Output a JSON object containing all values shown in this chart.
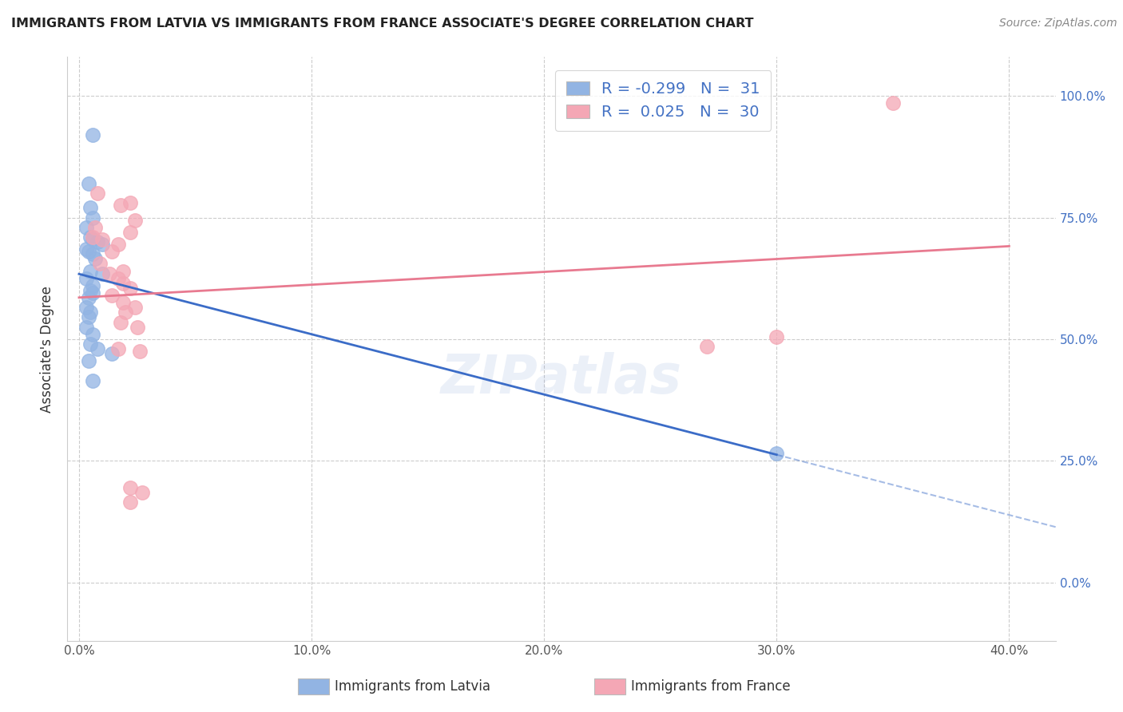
{
  "title": "IMMIGRANTS FROM LATVIA VS IMMIGRANTS FROM FRANCE ASSOCIATE'S DEGREE CORRELATION CHART",
  "source": "Source: ZipAtlas.com",
  "ylabel": "Associate's Degree",
  "legend_R1": "-0.299",
  "legend_N1": "31",
  "legend_R2": "0.025",
  "legend_N2": "30",
  "blue_color": "#92B4E3",
  "pink_color": "#F4A7B5",
  "blue_line_color": "#3B6CC7",
  "pink_line_color": "#E87A90",
  "xlim": [
    -0.5,
    42.0
  ],
  "ylim": [
    -0.12,
    1.08
  ],
  "x_ticks": [
    0,
    10,
    20,
    30,
    40
  ],
  "x_ticklabels": [
    "0.0%",
    "10.0%",
    "20.0%",
    "30.0%",
    "40.0%"
  ],
  "y_ticks": [
    0.0,
    0.25,
    0.5,
    0.75,
    1.0
  ],
  "y_ticklabels_right": [
    "0.0%",
    "25.0%",
    "50.0%",
    "75.0%",
    "100.0%"
  ],
  "blue_scatter": [
    [
      0.6,
      0.92
    ],
    [
      0.4,
      0.82
    ],
    [
      0.5,
      0.77
    ],
    [
      0.6,
      0.75
    ],
    [
      0.3,
      0.73
    ],
    [
      0.5,
      0.71
    ],
    [
      0.6,
      0.705
    ],
    [
      0.8,
      0.7
    ],
    [
      1.0,
      0.695
    ],
    [
      0.3,
      0.685
    ],
    [
      0.4,
      0.68
    ],
    [
      0.6,
      0.675
    ],
    [
      0.7,
      0.665
    ],
    [
      0.5,
      0.64
    ],
    [
      1.0,
      0.635
    ],
    [
      0.3,
      0.625
    ],
    [
      0.6,
      0.61
    ],
    [
      0.5,
      0.6
    ],
    [
      0.6,
      0.595
    ],
    [
      0.4,
      0.585
    ],
    [
      0.3,
      0.565
    ],
    [
      0.5,
      0.555
    ],
    [
      0.4,
      0.545
    ],
    [
      0.3,
      0.525
    ],
    [
      0.6,
      0.51
    ],
    [
      0.5,
      0.49
    ],
    [
      0.8,
      0.48
    ],
    [
      1.4,
      0.47
    ],
    [
      0.4,
      0.455
    ],
    [
      0.6,
      0.415
    ],
    [
      30.0,
      0.265
    ]
  ],
  "pink_scatter": [
    [
      35.0,
      0.985
    ],
    [
      0.8,
      0.8
    ],
    [
      2.2,
      0.78
    ],
    [
      1.8,
      0.775
    ],
    [
      2.4,
      0.745
    ],
    [
      0.7,
      0.73
    ],
    [
      2.2,
      0.72
    ],
    [
      0.6,
      0.71
    ],
    [
      1.0,
      0.705
    ],
    [
      1.7,
      0.695
    ],
    [
      1.4,
      0.68
    ],
    [
      0.9,
      0.655
    ],
    [
      1.9,
      0.64
    ],
    [
      1.3,
      0.635
    ],
    [
      1.7,
      0.625
    ],
    [
      1.9,
      0.615
    ],
    [
      2.2,
      0.605
    ],
    [
      1.4,
      0.59
    ],
    [
      1.9,
      0.575
    ],
    [
      2.4,
      0.565
    ],
    [
      2.0,
      0.555
    ],
    [
      1.8,
      0.535
    ],
    [
      2.5,
      0.525
    ],
    [
      1.7,
      0.48
    ],
    [
      2.6,
      0.475
    ],
    [
      27.0,
      0.485
    ],
    [
      30.0,
      0.505
    ],
    [
      2.2,
      0.195
    ],
    [
      2.7,
      0.185
    ],
    [
      2.2,
      0.165
    ]
  ]
}
